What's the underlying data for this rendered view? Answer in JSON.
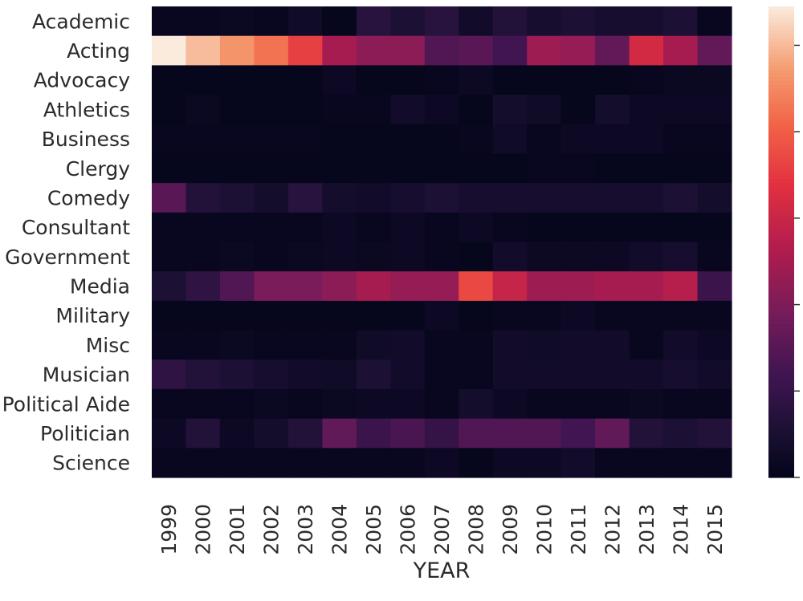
{
  "chart_data": {
    "type": "heatmap",
    "title": "",
    "xlabel": "YEAR",
    "ylabel": "",
    "x": [
      "1999",
      "2000",
      "2001",
      "2002",
      "2003",
      "2004",
      "2005",
      "2006",
      "2007",
      "2008",
      "2009",
      "2010",
      "2011",
      "2012",
      "2013",
      "2014",
      "2015"
    ],
    "y": [
      "Academic",
      "Acting",
      "Advocacy",
      "Athletics",
      "Business",
      "Clergy",
      "Comedy",
      "Consultant",
      "Government",
      "Media",
      "Military",
      "Misc",
      "Musician",
      "Political Aide",
      "Politician",
      "Science"
    ],
    "values": [
      [
        0.02,
        0.02,
        0.03,
        0.02,
        0.05,
        0.01,
        0.14,
        0.1,
        0.14,
        0.06,
        0.12,
        0.08,
        0.1,
        0.08,
        0.08,
        0.1,
        0.02
      ],
      [
        1.0,
        0.92,
        0.85,
        0.78,
        0.66,
        0.46,
        0.4,
        0.4,
        0.26,
        0.28,
        0.22,
        0.44,
        0.42,
        0.3,
        0.58,
        0.46,
        0.3
      ],
      [
        0.01,
        0.01,
        0.01,
        0.01,
        0.01,
        0.04,
        0.01,
        0.01,
        0.02,
        0.04,
        0.01,
        0.01,
        0.01,
        0.01,
        0.02,
        0.03,
        0.03
      ],
      [
        0.01,
        0.03,
        0.01,
        0.01,
        0.01,
        0.02,
        0.02,
        0.06,
        0.04,
        0.01,
        0.07,
        0.05,
        0.01,
        0.07,
        0.04,
        0.04,
        0.04
      ],
      [
        0.02,
        0.02,
        0.02,
        0.02,
        0.02,
        0.01,
        0.01,
        0.01,
        0.01,
        0.02,
        0.05,
        0.02,
        0.04,
        0.04,
        0.04,
        0.02,
        0.02
      ],
      [
        0.01,
        0.01,
        0.01,
        0.01,
        0.01,
        0.01,
        0.01,
        0.01,
        0.01,
        0.01,
        0.01,
        0.02,
        0.02,
        0.01,
        0.01,
        0.01,
        0.01
      ],
      [
        0.28,
        0.12,
        0.1,
        0.07,
        0.14,
        0.07,
        0.06,
        0.08,
        0.1,
        0.08,
        0.08,
        0.08,
        0.08,
        0.08,
        0.08,
        0.1,
        0.07
      ],
      [
        0.02,
        0.02,
        0.02,
        0.02,
        0.02,
        0.04,
        0.02,
        0.04,
        0.02,
        0.04,
        0.02,
        0.01,
        0.01,
        0.01,
        0.01,
        0.01,
        0.01
      ],
      [
        0.02,
        0.02,
        0.03,
        0.02,
        0.03,
        0.04,
        0.03,
        0.04,
        0.02,
        0.01,
        0.06,
        0.04,
        0.04,
        0.04,
        0.06,
        0.08,
        0.02
      ],
      [
        0.1,
        0.16,
        0.26,
        0.36,
        0.36,
        0.4,
        0.46,
        0.42,
        0.42,
        0.68,
        0.54,
        0.44,
        0.44,
        0.46,
        0.46,
        0.5,
        0.2
      ],
      [
        0.01,
        0.01,
        0.01,
        0.01,
        0.01,
        0.01,
        0.01,
        0.01,
        0.04,
        0.01,
        0.02,
        0.02,
        0.04,
        0.02,
        0.02,
        0.02,
        0.02
      ],
      [
        0.02,
        0.02,
        0.03,
        0.02,
        0.02,
        0.02,
        0.05,
        0.06,
        0.02,
        0.02,
        0.06,
        0.05,
        0.06,
        0.06,
        0.02,
        0.06,
        0.04
      ],
      [
        0.16,
        0.12,
        0.1,
        0.08,
        0.06,
        0.05,
        0.1,
        0.06,
        0.02,
        0.02,
        0.06,
        0.06,
        0.06,
        0.06,
        0.06,
        0.08,
        0.06
      ],
      [
        0.02,
        0.02,
        0.02,
        0.03,
        0.02,
        0.03,
        0.04,
        0.04,
        0.02,
        0.07,
        0.04,
        0.02,
        0.02,
        0.02,
        0.03,
        0.02,
        0.02
      ],
      [
        0.04,
        0.12,
        0.04,
        0.07,
        0.12,
        0.3,
        0.2,
        0.24,
        0.18,
        0.26,
        0.26,
        0.26,
        0.22,
        0.3,
        0.12,
        0.1,
        0.12
      ],
      [
        0.02,
        0.02,
        0.02,
        0.02,
        0.02,
        0.02,
        0.02,
        0.02,
        0.04,
        0.01,
        0.04,
        0.04,
        0.06,
        0.02,
        0.02,
        0.02,
        0.02
      ]
    ],
    "colormap": "rocket",
    "colorbar": true,
    "grid": false
  }
}
